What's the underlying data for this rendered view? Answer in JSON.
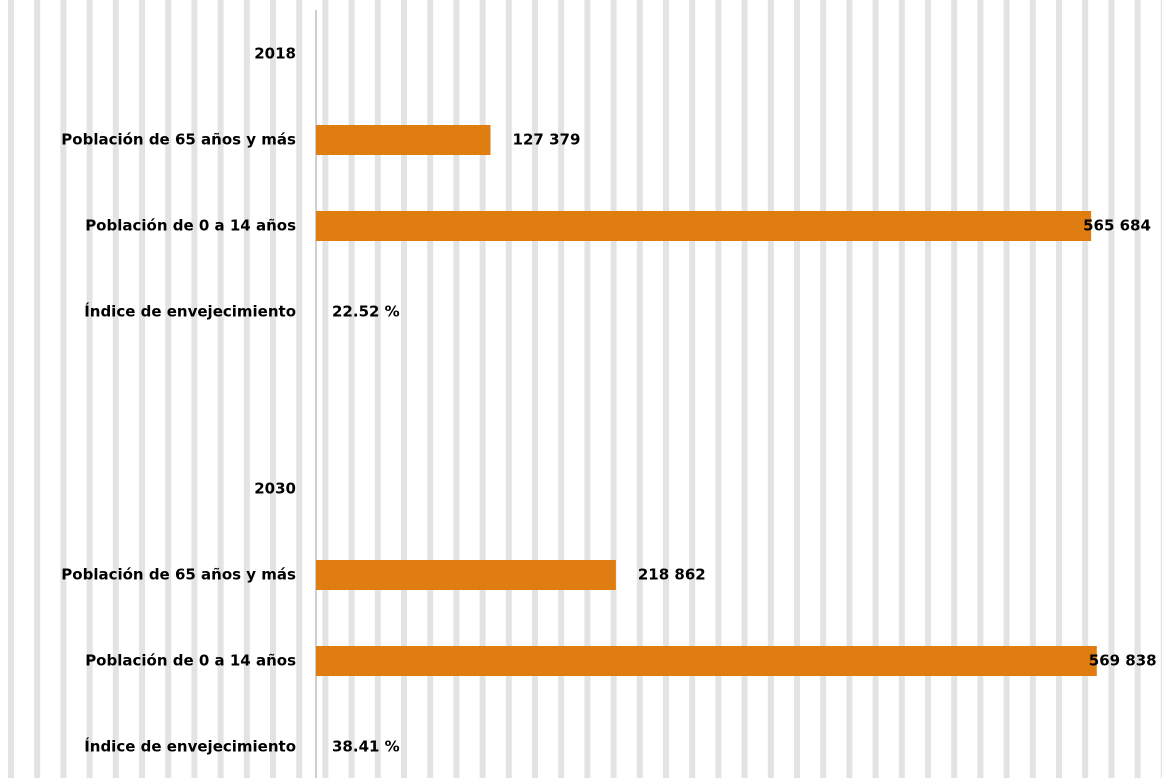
{
  "chart_data": {
    "type": "bar",
    "orientation": "horizontal",
    "grid": "vertical stripes",
    "bar_color": "#E07D10",
    "grid_color": "#E3E3E3",
    "groups": [
      {
        "year": "2018",
        "rows": [
          {
            "label": "Población de 65 años y más",
            "value": 127379,
            "value_label": "127 379"
          },
          {
            "label": "Población de 0 a 14 años",
            "value": 565684,
            "value_label": "565 684"
          },
          {
            "label": "Índice de envejecimiento",
            "value": 22.52,
            "value_label": "22.52 %"
          }
        ]
      },
      {
        "year": "2030",
        "rows": [
          {
            "label": "Población de 65 años y más",
            "value": 218862,
            "value_label": "218 862"
          },
          {
            "label": "Población de 0 a 14 años",
            "value": 569838,
            "value_label": "569 838"
          },
          {
            "label": "Índice de envejecimiento",
            "value": 38.41,
            "value_label": "38.41 %"
          }
        ]
      }
    ],
    "xlim": [
      0,
      570000
    ]
  }
}
